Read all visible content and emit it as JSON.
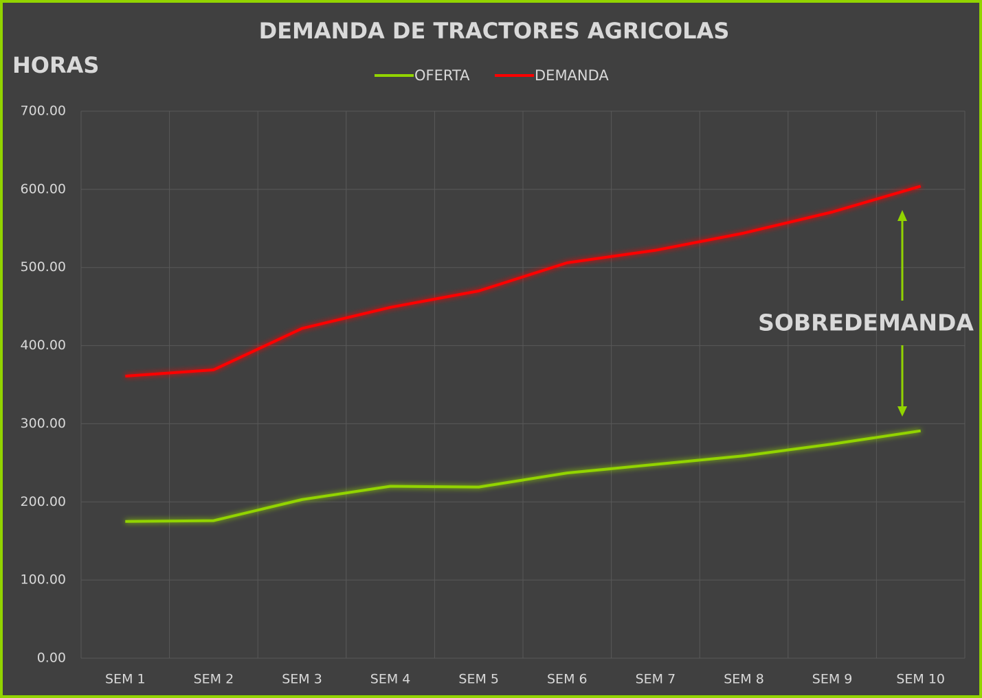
{
  "chart_data": {
    "type": "line",
    "title": "DEMANDA DE TRACTORES AGRICOLAS",
    "y_label": "HORAS",
    "annotation": "SOBREDEMANDA",
    "categories": [
      "SEM 1",
      "SEM 2",
      "SEM 3",
      "SEM 4",
      "SEM 5",
      "SEM 6",
      "SEM 7",
      "SEM 8",
      "SEM 9",
      "SEM 10"
    ],
    "series": [
      {
        "name": "OFERTA",
        "color": "#92d400",
        "values": [
          175,
          176,
          203,
          220,
          219,
          237,
          248,
          259,
          274,
          291
        ]
      },
      {
        "name": "DEMANDA",
        "color": "#ff0000",
        "values": [
          361,
          369,
          422,
          449,
          470,
          506,
          522,
          544,
          571,
          604
        ]
      }
    ],
    "ylim": [
      0,
      700
    ],
    "yticks": [
      {
        "value": 0,
        "label": "0.00"
      },
      {
        "value": 100,
        "label": "100.00"
      },
      {
        "value": 200,
        "label": "200.00"
      },
      {
        "value": 300,
        "label": "300.00"
      },
      {
        "value": 400,
        "label": "400.00"
      },
      {
        "value": 500,
        "label": "500.00"
      },
      {
        "value": 600,
        "label": "600.00"
      },
      {
        "value": 700,
        "label": "700.00"
      }
    ],
    "grid": true,
    "legend": "top"
  }
}
